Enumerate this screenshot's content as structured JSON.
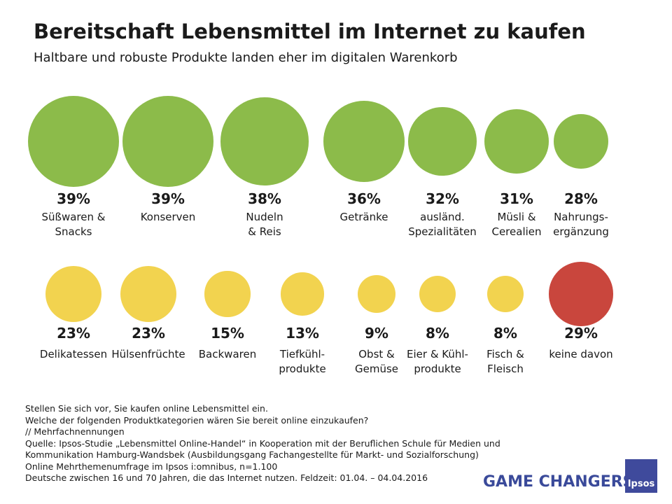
{
  "chart_data": [
    {
      "type": "bubble",
      "title": "Bereitschaft Lebensmittel im Internet zu kaufen",
      "subtitle": "Haltbare und robuste Produkte landen eher im digitalen Warenkorb",
      "categories": [
        "Süßwaren &\nSnacks",
        "Konserven",
        "Nudeln\n& Reis",
        "Getränke",
        "ausländ.\nSpezialitäten",
        "Müsli &\nCerealien",
        "Nahrungs-\nergänzung"
      ],
      "values": [
        39,
        39,
        38,
        36,
        32,
        31,
        28
      ],
      "value_labels": [
        "39%",
        "39%",
        "38%",
        "36%",
        "32%",
        "31%",
        "28%"
      ],
      "colors": [
        "#8cbb4a",
        "#8cbb4a",
        "#8cbb4a",
        "#8cbb4a",
        "#8cbb4a",
        "#8cbb4a",
        "#8cbb4a"
      ]
    },
    {
      "type": "bubble",
      "categories": [
        "Delikatessen",
        "Hülsenfrüchte",
        "Backwaren",
        "Tiefkühl-\nprodukte",
        "Obst &\nGemüse",
        "Eier & Kühl-\nprodukte",
        "Fisch &\nFleisch",
        "keine davon"
      ],
      "values": [
        23,
        23,
        15,
        13,
        9,
        8,
        8,
        29
      ],
      "value_labels": [
        "23%",
        "23%",
        "15%",
        "13%",
        "9%",
        "8%",
        "8%",
        "29%"
      ],
      "colors": [
        "#f2d34f",
        "#f2d34f",
        "#f2d34f",
        "#f2d34f",
        "#f2d34f",
        "#f2d34f",
        "#f2d34f",
        "#c9463d"
      ]
    }
  ],
  "footnotes": [
    "Stellen Sie sich vor, Sie kaufen online Lebensmittel ein.",
    "Welche der folgenden Produktkategorien wären Sie bereit online einzukaufen?",
    "// Mehrfachnennungen",
    "Quelle: Ipsos-Studie „Lebensmittel Online-Handel“ in Kooperation mit der Beruflichen Schule für Medien und",
    "Kommunikation  Hamburg-Wandsbek (Ausbildungsgang Fachangestellte für Markt- und Sozialforschung)",
    "Online Mehrthemenumfrage  im Ipsos i:omnibus, n=1.100",
    "Deutsche zwischen 16 und 70 Jahren, die das Internet nutzen. Feldzeit: 01.04. – 04.04.2016"
  ],
  "brand": "GAME CHANGERS",
  "logo": "Ipsos"
}
